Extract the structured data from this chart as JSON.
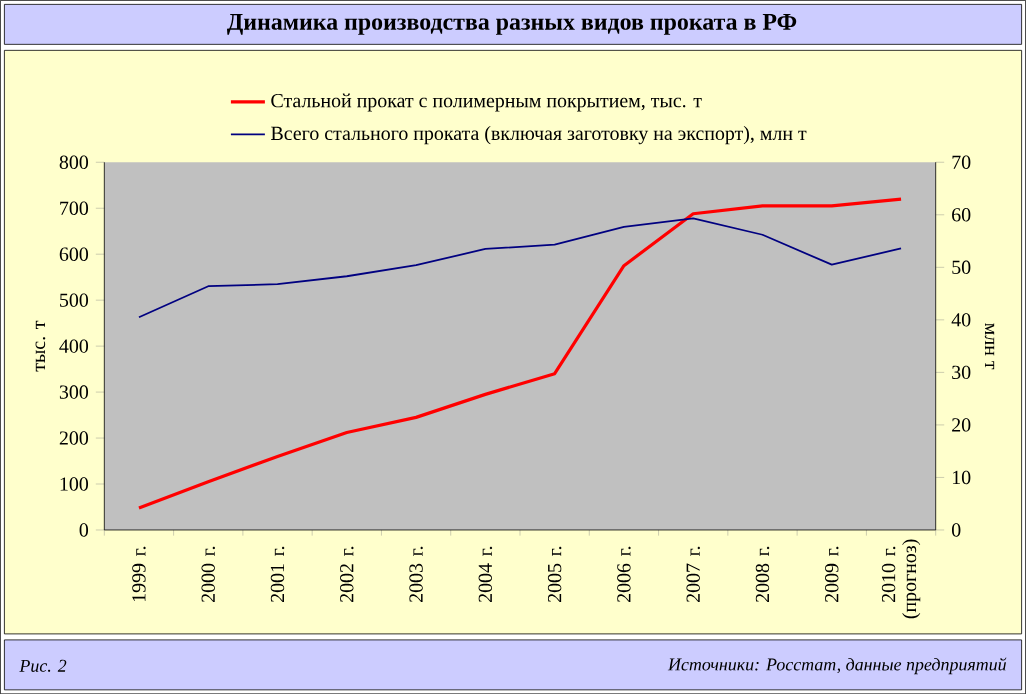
{
  "chart_data": {
    "type": "line",
    "title": "Динамика производства разных видов проката в РФ",
    "categories": [
      "1999 г.",
      "2000 г.",
      "2001 г.",
      "2002 г.",
      "2003 г.",
      "2004 г.",
      "2005 г.",
      "2006 г.",
      "2007 г.",
      "2008 г.",
      "2009 г.",
      "2010 г. (прогноз)"
    ],
    "series": [
      {
        "name": "Стальной прокат с полимерным покрытием, тыс. т",
        "color": "#ff0000",
        "values": [
          48,
          105,
          160,
          212,
          245,
          295,
          340,
          575,
          688,
          705,
          705,
          720
        ]
      },
      {
        "name": "Всего стального проката (включая заготовку на экспорт), млн т",
        "color": "#000080",
        "axis": "y2",
        "values": [
          40.5,
          46.4,
          46.8,
          48.3,
          50.4,
          53.5,
          54.3,
          57.7,
          59.3,
          56.2,
          50.5,
          53.6
        ]
      }
    ],
    "ylabel": "тыс. т",
    "y2label": "млн т",
    "ylim": [
      0,
      800
    ],
    "yticks": [
      0,
      100,
      200,
      300,
      400,
      500,
      600,
      700,
      800
    ],
    "y2lim": [
      0,
      70
    ],
    "y2ticks": [
      0,
      10,
      20,
      30,
      40,
      50,
      60,
      70
    ],
    "legend": "top",
    "grid": false,
    "marker": "none",
    "line_style": "solid",
    "annotations": [
      "Рис. 2",
      "Источники: Росстат, данные предприятий"
    ]
  }
}
